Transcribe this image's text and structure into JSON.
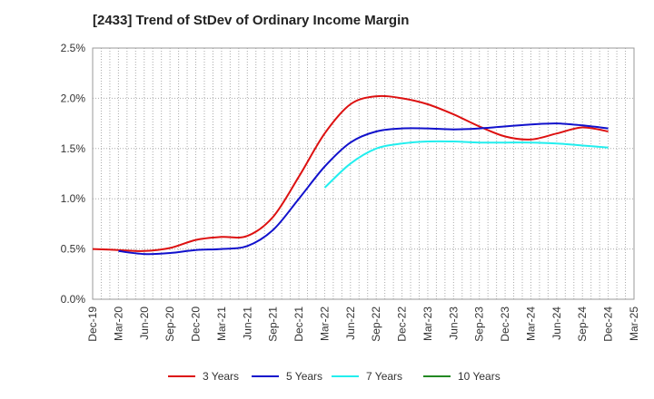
{
  "chart_data": {
    "type": "line",
    "title": "[2433]  Trend of StDev of Ordinary Income Margin",
    "xlabel": "",
    "ylabel": "",
    "categories": [
      "Dec-19",
      "Mar-20",
      "Jun-20",
      "Sep-20",
      "Dec-20",
      "Mar-21",
      "Jun-21",
      "Sep-21",
      "Dec-21",
      "Mar-22",
      "Jun-22",
      "Sep-22",
      "Dec-22",
      "Mar-23",
      "Jun-23",
      "Sep-23",
      "Dec-23",
      "Mar-24",
      "Jun-24",
      "Sep-24",
      "Dec-24",
      "Mar-25"
    ],
    "ylim": [
      0,
      2.5
    ],
    "yticks": [
      "0.0%",
      "0.5%",
      "1.0%",
      "1.5%",
      "2.0%",
      "2.5%"
    ],
    "grid": true,
    "legend_position": "bottom",
    "series": [
      {
        "name": "3 Years",
        "color": "#dd1111",
        "values": [
          0.5,
          0.49,
          0.48,
          0.51,
          0.59,
          0.62,
          0.63,
          0.82,
          1.22,
          1.65,
          1.94,
          2.02,
          2.0,
          1.94,
          1.84,
          1.72,
          1.62,
          1.59,
          1.65,
          1.71,
          1.67,
          null
        ]
      },
      {
        "name": "5 Years",
        "color": "#1111cc",
        "values": [
          null,
          0.48,
          0.45,
          0.46,
          0.49,
          0.5,
          0.53,
          0.69,
          1.0,
          1.32,
          1.56,
          1.67,
          1.7,
          1.7,
          1.69,
          1.7,
          1.72,
          1.74,
          1.75,
          1.73,
          1.7,
          null
        ]
      },
      {
        "name": "7 Years",
        "color": "#22eeee",
        "values": [
          null,
          null,
          null,
          null,
          null,
          null,
          null,
          null,
          null,
          1.11,
          1.35,
          1.5,
          1.55,
          1.57,
          1.57,
          1.56,
          1.56,
          1.56,
          1.55,
          1.53,
          1.51,
          null
        ]
      },
      {
        "name": "10 Years",
        "color": "#228822",
        "values": [
          null,
          null,
          null,
          null,
          null,
          null,
          null,
          null,
          null,
          null,
          null,
          null,
          null,
          null,
          null,
          null,
          null,
          null,
          null,
          null,
          null,
          null
        ]
      }
    ]
  }
}
